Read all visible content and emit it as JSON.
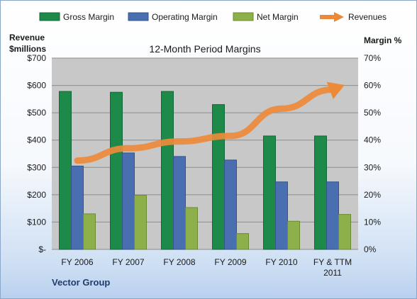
{
  "chart_data": {
    "type": "bar",
    "title": "12-Month Period Margins",
    "categories": [
      "FY 2006",
      "FY 2007",
      "FY 2008",
      "FY 2009",
      "FY 2010",
      "FY & TTM\n2011"
    ],
    "series": [
      {
        "name": "Gross Margin",
        "kind": "bar",
        "axis": "right",
        "color": "#1e8a4a",
        "values": [
          57.8,
          57.5,
          57.8,
          53.0,
          41.5,
          41.5
        ]
      },
      {
        "name": "Operating Margin",
        "kind": "bar",
        "axis": "right",
        "color": "#4a6fb0",
        "values": [
          30.5,
          35.3,
          34.0,
          32.7,
          24.7,
          24.7
        ]
      },
      {
        "name": "Net Margin",
        "kind": "bar",
        "axis": "right",
        "color": "#8eb04a",
        "values": [
          13.0,
          19.8,
          15.3,
          5.8,
          10.3,
          12.8
        ]
      },
      {
        "name": "Revenues",
        "kind": "line",
        "axis": "left",
        "color": "#ed8a3a",
        "values": [
          325,
          370,
          395,
          415,
          515,
          585
        ]
      }
    ],
    "y_left": {
      "label": "Revenue\n$millions",
      "ticks": [
        "$-",
        "$100",
        "$200",
        "$300",
        "$400",
        "$500",
        "$600",
        "$700"
      ],
      "range": [
        0,
        700
      ]
    },
    "y_right": {
      "label": "Margin %",
      "ticks": [
        "0%",
        "10%",
        "20%",
        "30%",
        "40%",
        "50%",
        "60%",
        "70%"
      ],
      "range": [
        0,
        70
      ]
    },
    "legend_position": "top",
    "grid": true,
    "plot_background": "#c8c8c8",
    "annotation": "Vector Group"
  }
}
